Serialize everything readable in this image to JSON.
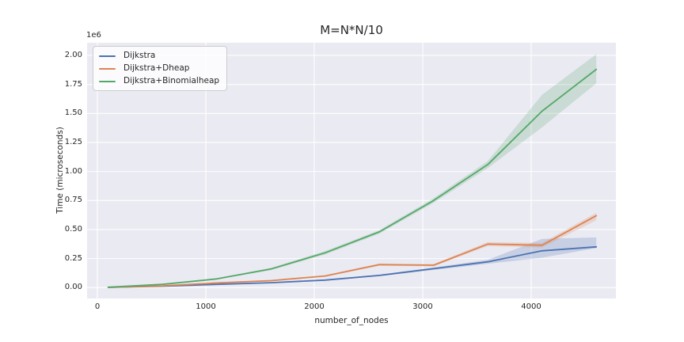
{
  "chart_data": {
    "type": "line",
    "title": "M=N*N/10",
    "xlabel": "number_of_nodes",
    "ylabel": "Time (microseconds)",
    "y_offset_label": "1e6",
    "y_units_note": "values are in 1e6 microseconds",
    "grid": true,
    "legend_position": "upper left",
    "plot_background": "#eaeaf2",
    "grid_color": "#ffffff",
    "band_alpha": 0.22,
    "xlim": [
      -94.9,
      4781.1
    ],
    "ylim": [
      -0.0935,
      2.109
    ],
    "xticks": {
      "values": [
        0,
        1000,
        2000,
        3000,
        4000
      ],
      "labels": [
        "0",
        "1000",
        "2000",
        "3000",
        "4000"
      ]
    },
    "yticks": {
      "values": [
        0.0,
        0.25,
        0.5,
        0.75,
        1.0,
        1.25,
        1.5,
        1.75,
        2.0
      ],
      "labels": [
        "0.00",
        "0.25",
        "0.50",
        "0.75",
        "1.00",
        "1.25",
        "1.50",
        "1.75",
        "2.00"
      ]
    },
    "x": [
      100,
      600,
      1100,
      1600,
      2100,
      2600,
      3100,
      3600,
      4100,
      4600
    ],
    "series": [
      {
        "name": "Dijkstra",
        "color": "#4c72b0",
        "values": [
          0.002,
          0.012,
          0.028,
          0.042,
          0.065,
          0.105,
          0.163,
          0.222,
          0.317,
          0.351
        ],
        "ci_lower": [
          0.002,
          0.011,
          0.026,
          0.04,
          0.06,
          0.098,
          0.152,
          0.205,
          0.258,
          0.34
        ],
        "ci_upper": [
          0.002,
          0.013,
          0.03,
          0.045,
          0.07,
          0.112,
          0.174,
          0.24,
          0.42,
          0.432
        ]
      },
      {
        "name": "Dijkstra+Dheap",
        "color": "#dd8452",
        "values": [
          0.002,
          0.015,
          0.04,
          0.06,
          0.1,
          0.198,
          0.193,
          0.375,
          0.365,
          0.62
        ],
        "ci_lower": [
          0.002,
          0.013,
          0.037,
          0.056,
          0.093,
          0.188,
          0.183,
          0.358,
          0.345,
          0.58
        ],
        "ci_upper": [
          0.002,
          0.017,
          0.043,
          0.064,
          0.107,
          0.208,
          0.203,
          0.392,
          0.385,
          0.645
        ]
      },
      {
        "name": "Dijkstra+Binomialheap",
        "color": "#55a868",
        "values": [
          0.003,
          0.028,
          0.075,
          0.16,
          0.3,
          0.48,
          0.75,
          1.06,
          1.52,
          1.88
        ],
        "ci_lower": [
          0.003,
          0.026,
          0.07,
          0.15,
          0.285,
          0.465,
          0.73,
          1.03,
          1.38,
          1.76
        ],
        "ci_upper": [
          0.003,
          0.03,
          0.08,
          0.17,
          0.315,
          0.495,
          0.77,
          1.09,
          1.66,
          2.01
        ]
      }
    ]
  }
}
